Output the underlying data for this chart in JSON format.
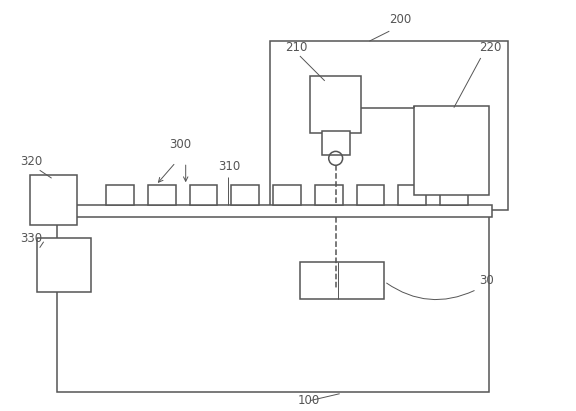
{
  "bg_color": "#ffffff",
  "line_color": "#555555",
  "lw": 1.1,
  "tlw": 0.7,
  "figsize": [
    5.76,
    4.11
  ],
  "dpi": 100
}
